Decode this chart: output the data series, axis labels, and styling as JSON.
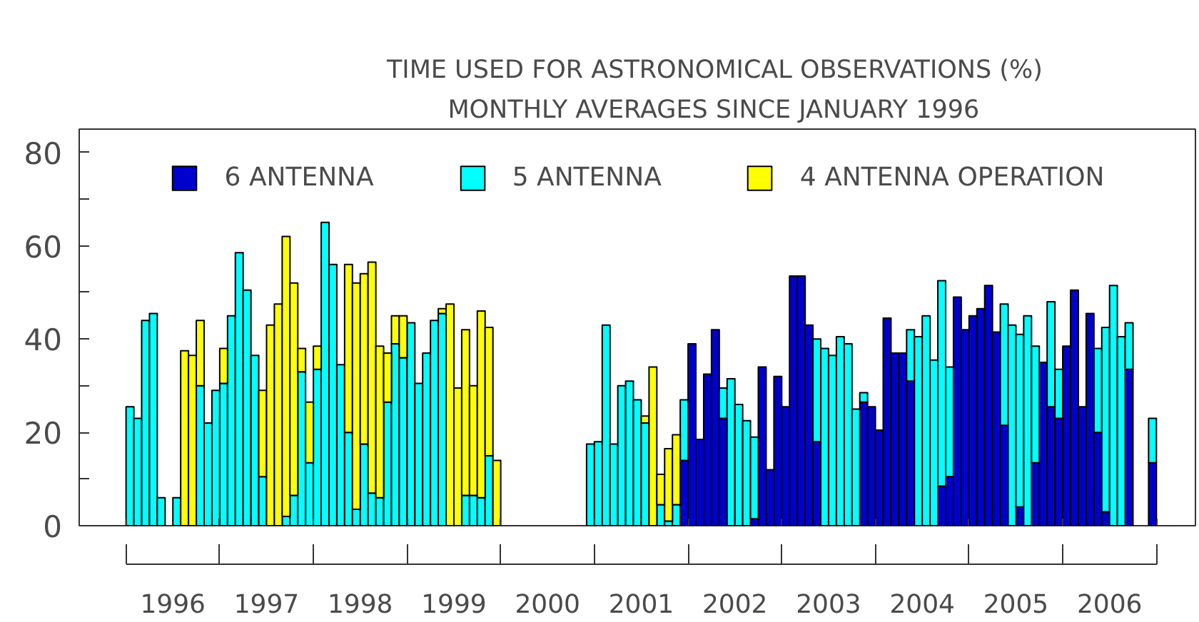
{
  "chart_data": {
    "type": "bar",
    "title": "TIME USED FOR ASTRONOMICAL OBSERVATIONS (%)",
    "subtitle": "MONTHLY AVERAGES SINCE JANUARY 1996",
    "stacked": true,
    "legend": "top",
    "x": [
      "1996-01",
      "1996-02",
      "1996-03",
      "1996-04",
      "1996-05",
      "1996-06",
      "1996-07",
      "1996-08",
      "1996-09",
      "1996-10",
      "1996-11",
      "1996-12",
      "1997-01",
      "1997-02",
      "1997-03",
      "1997-04",
      "1997-05",
      "1997-06",
      "1997-07",
      "1997-08",
      "1997-09",
      "1997-10",
      "1997-11",
      "1997-12",
      "1998-01",
      "1998-02",
      "1998-03",
      "1998-04",
      "1998-05",
      "1998-06",
      "1998-07",
      "1998-08",
      "1998-09",
      "1998-10",
      "1998-11",
      "1998-12",
      "1999-01",
      "1999-02",
      "1999-03",
      "1999-04",
      "1999-05",
      "1999-06",
      "1999-07",
      "1999-08",
      "1999-09",
      "1999-10",
      "1999-11",
      "1999-12",
      "2000-01",
      "2000-02",
      "2000-03",
      "2000-04",
      "2000-05",
      "2000-06",
      "2000-07",
      "2000-08",
      "2000-09",
      "2000-10",
      "2000-11",
      "2000-12",
      "2001-01",
      "2001-02",
      "2001-03",
      "2001-04",
      "2001-05",
      "2001-06",
      "2001-07",
      "2001-08",
      "2001-09",
      "2001-10",
      "2001-11",
      "2001-12",
      "2002-01",
      "2002-02",
      "2002-03",
      "2002-04",
      "2002-05",
      "2002-06",
      "2002-07",
      "2002-08",
      "2002-09",
      "2002-10",
      "2002-11",
      "2002-12",
      "2003-01",
      "2003-02",
      "2003-03",
      "2003-04",
      "2003-05",
      "2003-06",
      "2003-07",
      "2003-08",
      "2003-09",
      "2003-10",
      "2003-11",
      "2003-12",
      "2004-01",
      "2004-02",
      "2004-03",
      "2004-04",
      "2004-05",
      "2004-06",
      "2004-07",
      "2004-08",
      "2004-09",
      "2004-10",
      "2004-11",
      "2004-12",
      "2005-01",
      "2005-02",
      "2005-03",
      "2005-04",
      "2005-05",
      "2005-06",
      "2005-07",
      "2005-08",
      "2005-09",
      "2005-10",
      "2005-11",
      "2005-12",
      "2006-01",
      "2006-02",
      "2006-03",
      "2006-04",
      "2006-05",
      "2006-06",
      "2006-07",
      "2006-08",
      "2006-09",
      "2006-10",
      "2006-11",
      "2006-12"
    ],
    "series": [
      {
        "name": "6 ANTENNA",
        "color": "#0000cc",
        "values": [
          null,
          null,
          null,
          null,
          null,
          null,
          null,
          null,
          null,
          null,
          null,
          null,
          null,
          null,
          null,
          null,
          null,
          null,
          null,
          null,
          null,
          null,
          null,
          null,
          null,
          null,
          null,
          null,
          null,
          null,
          null,
          null,
          null,
          null,
          null,
          null,
          null,
          null,
          null,
          null,
          null,
          null,
          null,
          null,
          null,
          null,
          null,
          null,
          null,
          null,
          null,
          null,
          null,
          null,
          null,
          null,
          null,
          null,
          null,
          null,
          null,
          null,
          null,
          null,
          null,
          null,
          null,
          null,
          null,
          null,
          null,
          14,
          39,
          18.5,
          32.5,
          42,
          23,
          null,
          null,
          null,
          1.5,
          34,
          12,
          32,
          25.5,
          53.5,
          53.5,
          43,
          18,
          null,
          null,
          null,
          null,
          null,
          26.5,
          25.5,
          20.5,
          44.5,
          37,
          37,
          31,
          null,
          null,
          null,
          8.5,
          10.5,
          49,
          42,
          45,
          46.5,
          51.5,
          41.5,
          21.5,
          null,
          4,
          null,
          13.5,
          35,
          25.5,
          23,
          38.5,
          50.5,
          25.5,
          45.5,
          20,
          3,
          null,
          null,
          33.5,
          null,
          null,
          13.5
        ]
      },
      {
        "name": "5 ANTENNA",
        "color": "#00ffff",
        "values": [
          25.5,
          23,
          44,
          45.5,
          6,
          null,
          6,
          null,
          null,
          30,
          22,
          29,
          30.5,
          45,
          58.5,
          50.5,
          36.5,
          10.5,
          null,
          null,
          2,
          6.5,
          33,
          13.5,
          33.5,
          65,
          56,
          34.5,
          20,
          3.5,
          17.5,
          7,
          6,
          26.5,
          39,
          36,
          43.5,
          30.5,
          37,
          44,
          45.5,
          null,
          null,
          6.5,
          6.5,
          6,
          15,
          null,
          null,
          null,
          null,
          null,
          null,
          null,
          null,
          null,
          null,
          null,
          null,
          17.5,
          18,
          43,
          17.5,
          30,
          31,
          27,
          22,
          null,
          4.5,
          1,
          4.5,
          13,
          null,
          null,
          null,
          null,
          6.5,
          31.5,
          26,
          22.5,
          17.5,
          null,
          null,
          null,
          null,
          null,
          null,
          null,
          22,
          38,
          36.5,
          40.5,
          39,
          25,
          2,
          null,
          null,
          null,
          null,
          null,
          11,
          40.5,
          45,
          35.5,
          44,
          23.5,
          null,
          null,
          null,
          null,
          null,
          null,
          26,
          43,
          37,
          45,
          25,
          null,
          22.5,
          10.5,
          null,
          null,
          null,
          null,
          18,
          39.5,
          51.5,
          40.5,
          10,
          null,
          null,
          9.5
        ]
      },
      {
        "name": "4 ANTENNA OPERATION",
        "color": "#ffff00",
        "values": [
          null,
          null,
          null,
          null,
          null,
          null,
          null,
          37.5,
          36.5,
          14,
          null,
          null,
          7.5,
          null,
          null,
          null,
          null,
          18.5,
          43,
          47.5,
          60,
          45.5,
          5,
          13,
          5,
          null,
          null,
          null,
          36,
          48.5,
          36.5,
          49.5,
          32.5,
          10.5,
          6,
          9,
          null,
          null,
          null,
          null,
          1,
          47.5,
          29.5,
          35.5,
          23.5,
          40,
          27.5,
          14,
          null,
          null,
          null,
          null,
          null,
          null,
          null,
          null,
          null,
          null,
          null,
          null,
          null,
          null,
          null,
          null,
          null,
          null,
          1.5,
          34,
          6.5,
          15.5,
          15,
          null,
          null,
          null,
          null,
          null,
          null,
          null,
          null,
          null,
          null,
          null,
          null,
          null,
          null,
          null,
          null,
          null,
          null,
          null,
          null,
          null,
          null,
          null,
          null,
          null,
          null,
          null,
          null,
          null,
          null,
          null,
          null,
          null,
          null,
          null,
          null,
          null,
          null,
          null,
          null,
          null,
          null,
          null,
          null,
          null,
          null,
          null,
          null,
          null,
          null,
          null,
          null,
          null,
          null,
          null,
          null,
          null,
          null,
          null,
          null,
          null
        ]
      }
    ],
    "xlim": [
      "1995-07",
      "2007-06"
    ],
    "xticks": [
      {
        "value": "1996-01",
        "label": null
      },
      {
        "value": "1996-07",
        "label": "1996"
      },
      {
        "value": "1997-01",
        "label": null
      },
      {
        "value": "1997-07",
        "label": "1997"
      },
      {
        "value": "1998-01",
        "label": null
      },
      {
        "value": "1998-07",
        "label": "1998"
      },
      {
        "value": "1999-01",
        "label": null
      },
      {
        "value": "1999-07",
        "label": "1999"
      },
      {
        "value": "2000-01",
        "label": null
      },
      {
        "value": "2000-07",
        "label": "2000"
      },
      {
        "value": "2001-01",
        "label": null
      },
      {
        "value": "2001-07",
        "label": "2001"
      },
      {
        "value": "2002-01",
        "label": null
      },
      {
        "value": "2002-07",
        "label": "2002"
      },
      {
        "value": "2003-01",
        "label": null
      },
      {
        "value": "2003-07",
        "label": "2003"
      },
      {
        "value": "2004-01",
        "label": null
      },
      {
        "value": "2004-07",
        "label": "2004"
      },
      {
        "value": "2005-01",
        "label": null
      },
      {
        "value": "2005-07",
        "label": "2005"
      },
      {
        "value": "2006-01",
        "label": null
      },
      {
        "value": "2006-07",
        "label": "2006"
      },
      {
        "value": "2007-01",
        "label": null
      }
    ],
    "ylim": [
      0,
      85
    ],
    "yticks": [
      0,
      {
        "value": 10,
        "label": null
      },
      20,
      {
        "value": 30,
        "label": null
      },
      40,
      {
        "value": 50,
        "label": null
      },
      60,
      {
        "value": 70,
        "label": null
      },
      80
    ]
  }
}
